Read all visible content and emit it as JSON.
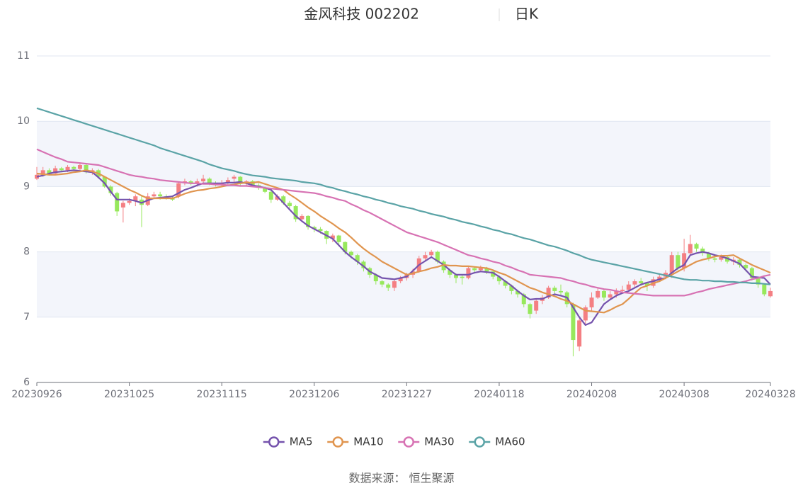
{
  "chart_data": {
    "type": "candlestick",
    "title": "金风科技 002202",
    "subtitle": "日K",
    "source": "数据来源： 恒生聚源",
    "up_color": "#f47f83",
    "down_color": "#97e85c",
    "ylim": [
      6,
      11
    ],
    "yticks": [
      6,
      7,
      8,
      9,
      10,
      11
    ],
    "grid": true,
    "legend": "bottom",
    "categories": [
      "20230926",
      null,
      null,
      null,
      null,
      null,
      null,
      null,
      null,
      null,
      null,
      null,
      null,
      null,
      null,
      "20231025",
      null,
      null,
      null,
      null,
      null,
      null,
      null,
      null,
      null,
      null,
      null,
      null,
      null,
      null,
      "20231115",
      null,
      null,
      null,
      null,
      null,
      null,
      null,
      null,
      null,
      null,
      null,
      null,
      null,
      null,
      "20231206",
      null,
      null,
      null,
      null,
      null,
      null,
      null,
      null,
      null,
      null,
      null,
      null,
      null,
      null,
      "20231227",
      null,
      null,
      null,
      null,
      null,
      null,
      null,
      null,
      null,
      null,
      null,
      null,
      null,
      null,
      "20240118",
      null,
      null,
      null,
      null,
      null,
      null,
      null,
      null,
      null,
      null,
      null,
      null,
      null,
      null,
      "20240208",
      null,
      null,
      null,
      null,
      null,
      null,
      null,
      null,
      null,
      null,
      null,
      null,
      null,
      null,
      "20240308",
      null,
      null,
      null,
      null,
      null,
      null,
      null,
      null,
      null,
      null,
      null,
      null,
      null,
      "20240328"
    ],
    "candles": [
      [
        9.12,
        9.18,
        9.1,
        9.3
      ],
      [
        9.18,
        9.25,
        9.15,
        9.3
      ],
      [
        9.25,
        9.2,
        9.17,
        9.28
      ],
      [
        9.2,
        9.28,
        9.18,
        9.32
      ],
      [
        9.28,
        9.25,
        9.22,
        9.3
      ],
      [
        9.25,
        9.3,
        9.22,
        9.33
      ],
      [
        9.3,
        9.27,
        9.24,
        9.32
      ],
      [
        9.27,
        9.33,
        9.25,
        9.37
      ],
      [
        9.33,
        9.22,
        9.2,
        9.34
      ],
      [
        9.22,
        9.25,
        9.18,
        9.28
      ],
      [
        9.25,
        9.15,
        9.12,
        9.27
      ],
      [
        9.15,
        9.0,
        8.98,
        9.16
      ],
      [
        9.0,
        8.9,
        8.86,
        9.02
      ],
      [
        8.9,
        8.62,
        8.55,
        8.92
      ],
      [
        8.68,
        8.75,
        8.45,
        8.78
      ],
      [
        8.75,
        8.78,
        8.72,
        8.82
      ],
      [
        8.78,
        8.85,
        8.7,
        8.88
      ],
      [
        8.8,
        8.72,
        8.38,
        8.86
      ],
      [
        8.72,
        8.85,
        8.7,
        8.9
      ],
      [
        8.85,
        8.88,
        8.82,
        8.92
      ],
      [
        8.88,
        8.85,
        8.8,
        8.92
      ],
      [
        8.85,
        8.83,
        8.8,
        8.88
      ],
      [
        8.83,
        8.8,
        8.78,
        8.86
      ],
      [
        8.85,
        9.05,
        8.82,
        9.08
      ],
      [
        9.05,
        9.08,
        9.02,
        9.12
      ],
      [
        9.08,
        9.05,
        9.02,
        9.1
      ],
      [
        9.05,
        9.08,
        9.0,
        9.12
      ],
      [
        9.08,
        9.12,
        9.05,
        9.18
      ],
      [
        9.12,
        9.05,
        9.02,
        9.14
      ],
      [
        9.05,
        9.03,
        9.0,
        9.08
      ],
      [
        9.03,
        9.05,
        9.0,
        9.1
      ],
      [
        9.05,
        9.1,
        9.02,
        9.14
      ],
      [
        9.12,
        9.15,
        9.05,
        9.18
      ],
      [
        9.15,
        9.05,
        9.02,
        9.16
      ],
      [
        9.05,
        9.08,
        9.02,
        9.1
      ],
      [
        9.08,
        9.02,
        9.0,
        9.1
      ],
      [
        9.02,
        8.98,
        8.95,
        9.05
      ],
      [
        8.98,
        8.92,
        8.9,
        9.0
      ],
      [
        8.92,
        8.8,
        8.75,
        8.94
      ],
      [
        8.8,
        8.85,
        8.78,
        8.88
      ],
      [
        8.85,
        8.75,
        8.72,
        8.87
      ],
      [
        8.75,
        8.7,
        8.66,
        8.78
      ],
      [
        8.7,
        8.5,
        8.46,
        8.72
      ],
      [
        8.5,
        8.55,
        8.48,
        8.58
      ],
      [
        8.55,
        8.38,
        8.34,
        8.56
      ],
      [
        8.38,
        8.35,
        8.3,
        8.4
      ],
      [
        8.35,
        8.32,
        8.28,
        8.38
      ],
      [
        8.32,
        8.2,
        8.12,
        8.33
      ],
      [
        8.2,
        8.25,
        8.15,
        8.28
      ],
      [
        8.25,
        8.15,
        8.1,
        8.26
      ],
      [
        8.15,
        8.0,
        7.96,
        8.16
      ],
      [
        8.0,
        7.95,
        7.9,
        8.02
      ],
      [
        7.95,
        7.85,
        7.8,
        7.97
      ],
      [
        7.85,
        7.75,
        7.7,
        7.87
      ],
      [
        7.75,
        7.65,
        7.6,
        7.77
      ],
      [
        7.65,
        7.55,
        7.5,
        7.67
      ],
      [
        7.55,
        7.5,
        7.46,
        7.57
      ],
      [
        7.5,
        7.45,
        7.4,
        7.52
      ],
      [
        7.45,
        7.55,
        7.4,
        7.58
      ],
      [
        7.55,
        7.6,
        7.52,
        7.63
      ],
      [
        7.6,
        7.65,
        7.56,
        7.68
      ],
      [
        7.65,
        7.7,
        7.6,
        7.74
      ],
      [
        7.7,
        7.9,
        7.68,
        7.94
      ],
      [
        7.9,
        7.95,
        7.85,
        8.0
      ],
      [
        7.95,
        8.0,
        7.92,
        8.03
      ],
      [
        8.0,
        7.85,
        7.82,
        8.02
      ],
      [
        7.85,
        7.72,
        7.68,
        7.87
      ],
      [
        7.72,
        7.65,
        7.6,
        7.74
      ],
      [
        7.65,
        7.6,
        7.52,
        7.67
      ],
      [
        7.62,
        7.6,
        7.5,
        7.64
      ],
      [
        7.6,
        7.75,
        7.58,
        7.78
      ],
      [
        7.75,
        7.72,
        7.68,
        7.77
      ],
      [
        7.72,
        7.75,
        7.7,
        7.79
      ],
      [
        7.75,
        7.7,
        7.66,
        7.77
      ],
      [
        7.7,
        7.62,
        7.58,
        7.72
      ],
      [
        7.62,
        7.55,
        7.5,
        7.64
      ],
      [
        7.55,
        7.48,
        7.44,
        7.57
      ],
      [
        7.48,
        7.4,
        7.35,
        7.5
      ],
      [
        7.4,
        7.35,
        7.3,
        7.42
      ],
      [
        7.35,
        7.2,
        7.15,
        7.37
      ],
      [
        7.2,
        7.05,
        6.98,
        7.22
      ],
      [
        7.1,
        7.25,
        7.05,
        7.28
      ],
      [
        7.25,
        7.3,
        7.2,
        7.34
      ],
      [
        7.3,
        7.45,
        7.28,
        7.48
      ],
      [
        7.45,
        7.4,
        7.35,
        7.48
      ],
      [
        7.4,
        7.38,
        7.32,
        7.5
      ],
      [
        7.38,
        7.2,
        7.15,
        7.4
      ],
      [
        7.2,
        6.65,
        6.4,
        7.22
      ],
      [
        6.55,
        6.95,
        6.48,
        6.98
      ],
      [
        6.95,
        7.15,
        6.9,
        7.18
      ],
      [
        7.15,
        7.3,
        7.1,
        7.38
      ],
      [
        7.3,
        7.4,
        7.28,
        7.45
      ],
      [
        7.4,
        7.3,
        7.25,
        7.42
      ],
      [
        7.3,
        7.35,
        7.28,
        7.4
      ],
      [
        7.35,
        7.4,
        7.3,
        7.44
      ],
      [
        7.4,
        7.42,
        7.36,
        7.48
      ],
      [
        7.42,
        7.5,
        7.4,
        7.55
      ],
      [
        7.5,
        7.55,
        7.46,
        7.58
      ],
      [
        7.55,
        7.52,
        7.48,
        7.6
      ],
      [
        7.52,
        7.48,
        7.4,
        7.54
      ],
      [
        7.48,
        7.58,
        7.45,
        7.62
      ],
      [
        7.58,
        7.62,
        7.55,
        7.66
      ],
      [
        7.62,
        7.68,
        7.58,
        7.72
      ],
      [
        7.68,
        7.95,
        7.6,
        8.0
      ],
      [
        7.95,
        7.75,
        7.72,
        8.0
      ],
      [
        7.75,
        7.98,
        7.7,
        8.2
      ],
      [
        7.98,
        8.12,
        7.95,
        8.26
      ],
      [
        8.12,
        8.05,
        8.0,
        8.14
      ],
      [
        8.05,
        7.98,
        7.94,
        8.08
      ],
      [
        7.98,
        7.9,
        7.86,
        8.0
      ],
      [
        7.9,
        7.88,
        7.84,
        7.94
      ],
      [
        7.88,
        7.92,
        7.85,
        7.96
      ],
      [
        7.92,
        7.85,
        7.82,
        7.94
      ],
      [
        7.85,
        7.88,
        7.8,
        7.92
      ],
      [
        7.88,
        7.8,
        7.76,
        7.9
      ],
      [
        7.8,
        7.75,
        7.7,
        7.82
      ],
      [
        7.75,
        7.6,
        7.56,
        7.77
      ],
      [
        7.6,
        7.5,
        7.45,
        7.62
      ],
      [
        7.5,
        7.35,
        7.32,
        7.52
      ],
      [
        7.32,
        7.4,
        7.3,
        7.45
      ]
    ],
    "series": [
      {
        "name": "MA5",
        "color": "#7553ad",
        "values": [
          9.15,
          9.17,
          9.2,
          9.22,
          9.23,
          9.24,
          9.25,
          9.24,
          9.23,
          9.22,
          9.14,
          9.05,
          8.92,
          8.8,
          8.8,
          8.8,
          8.78,
          8.75,
          8.79,
          8.82,
          8.83,
          8.84,
          8.85,
          8.9,
          8.95,
          8.98,
          9.02,
          9.05,
          9.05,
          9.05,
          9.05,
          9.06,
          9.06,
          9.07,
          9.05,
          9.02,
          9.0,
          8.98,
          8.95,
          8.85,
          8.75,
          8.65,
          8.55,
          8.47,
          8.4,
          8.35,
          8.3,
          8.25,
          8.2,
          8.1,
          8.0,
          7.92,
          7.85,
          7.78,
          7.7,
          7.65,
          7.6,
          7.59,
          7.58,
          7.6,
          7.62,
          7.71,
          7.8,
          7.86,
          7.92,
          7.86,
          7.8,
          7.72,
          7.65,
          7.65,
          7.65,
          7.68,
          7.7,
          7.69,
          7.68,
          7.62,
          7.55,
          7.48,
          7.4,
          7.33,
          7.27,
          7.28,
          7.28,
          7.32,
          7.35,
          7.33,
          7.3,
          7.15,
          7.0,
          6.88,
          6.92,
          7.06,
          7.2,
          7.27,
          7.33,
          7.37,
          7.4,
          7.45,
          7.5,
          7.53,
          7.55,
          7.58,
          7.6,
          7.68,
          7.75,
          7.8,
          7.95,
          7.98,
          8.0,
          7.98,
          7.95,
          7.93,
          7.9,
          7.86,
          7.82,
          7.72,
          7.62,
          7.61,
          7.6,
          7.5
        ]
      },
      {
        "name": "MA10",
        "color": "#e0954f",
        "values": [
          9.2,
          9.19,
          9.18,
          9.18,
          9.19,
          9.2,
          9.22,
          9.23,
          9.25,
          9.23,
          9.2,
          9.15,
          9.1,
          9.05,
          9.0,
          8.95,
          8.91,
          8.86,
          8.82,
          8.82,
          8.82,
          8.82,
          8.82,
          8.85,
          8.89,
          8.92,
          8.94,
          8.95,
          8.97,
          8.98,
          9.0,
          9.02,
          9.03,
          9.05,
          9.06,
          9.06,
          9.07,
          9.04,
          9.01,
          8.98,
          8.95,
          8.88,
          8.82,
          8.75,
          8.68,
          8.62,
          8.55,
          8.49,
          8.43,
          8.36,
          8.3,
          8.22,
          8.13,
          8.05,
          7.98,
          7.92,
          7.85,
          7.8,
          7.75,
          7.7,
          7.65,
          7.67,
          7.7,
          7.72,
          7.75,
          7.77,
          7.8,
          7.79,
          7.79,
          7.78,
          7.78,
          7.77,
          7.76,
          7.75,
          7.72,
          7.68,
          7.65,
          7.6,
          7.55,
          7.5,
          7.45,
          7.42,
          7.38,
          7.35,
          7.32,
          7.28,
          7.25,
          7.2,
          7.15,
          7.1,
          7.09,
          7.08,
          7.07,
          7.11,
          7.16,
          7.2,
          7.28,
          7.37,
          7.45,
          7.48,
          7.52,
          7.55,
          7.6,
          7.65,
          7.7,
          7.75,
          7.8,
          7.85,
          7.88,
          7.9,
          7.93,
          7.94,
          7.94,
          7.95,
          7.9,
          7.85,
          7.8,
          7.76,
          7.72,
          7.68
        ]
      },
      {
        "name": "MA30",
        "color": "#d772b3",
        "values": [
          9.57,
          9.53,
          9.49,
          9.45,
          9.42,
          9.38,
          9.37,
          9.36,
          9.35,
          9.34,
          9.33,
          9.3,
          9.27,
          9.24,
          9.21,
          9.18,
          9.16,
          9.15,
          9.13,
          9.12,
          9.1,
          9.09,
          9.08,
          9.07,
          9.06,
          9.05,
          9.05,
          9.04,
          9.04,
          9.03,
          9.03,
          9.02,
          9.02,
          9.01,
          9.01,
          9.0,
          8.99,
          8.98,
          8.97,
          8.96,
          8.95,
          8.94,
          8.93,
          8.92,
          8.91,
          8.9,
          8.88,
          8.85,
          8.83,
          8.8,
          8.78,
          8.73,
          8.69,
          8.64,
          8.6,
          8.55,
          8.5,
          8.45,
          8.4,
          8.35,
          8.3,
          8.27,
          8.24,
          8.21,
          8.18,
          8.15,
          8.11,
          8.07,
          8.03,
          7.99,
          7.95,
          7.93,
          7.9,
          7.88,
          7.85,
          7.83,
          7.79,
          7.76,
          7.72,
          7.69,
          7.65,
          7.64,
          7.63,
          7.62,
          7.61,
          7.6,
          7.57,
          7.55,
          7.52,
          7.5,
          7.47,
          7.45,
          7.43,
          7.42,
          7.4,
          7.38,
          7.37,
          7.36,
          7.35,
          7.34,
          7.33,
          7.33,
          7.33,
          7.33,
          7.33,
          7.33,
          7.35,
          7.38,
          7.4,
          7.43,
          7.45,
          7.47,
          7.49,
          7.51,
          7.53,
          7.55,
          7.58,
          7.6,
          7.63,
          7.65
        ]
      },
      {
        "name": "MA60",
        "color": "#5aa3a6",
        "values": [
          10.2,
          10.17,
          10.14,
          10.11,
          10.08,
          10.05,
          10.02,
          9.99,
          9.96,
          9.93,
          9.9,
          9.87,
          9.84,
          9.81,
          9.78,
          9.75,
          9.72,
          9.69,
          9.66,
          9.63,
          9.59,
          9.56,
          9.53,
          9.5,
          9.47,
          9.44,
          9.41,
          9.38,
          9.34,
          9.31,
          9.28,
          9.26,
          9.24,
          9.21,
          9.19,
          9.17,
          9.16,
          9.15,
          9.13,
          9.12,
          9.11,
          9.1,
          9.09,
          9.07,
          9.06,
          9.05,
          9.03,
          9.0,
          8.98,
          8.95,
          8.93,
          8.9,
          8.88,
          8.85,
          8.83,
          8.8,
          8.78,
          8.75,
          8.73,
          8.7,
          8.68,
          8.66,
          8.63,
          8.61,
          8.58,
          8.56,
          8.54,
          8.51,
          8.49,
          8.46,
          8.44,
          8.42,
          8.39,
          8.37,
          8.34,
          8.32,
          8.29,
          8.27,
          8.24,
          8.21,
          8.19,
          8.16,
          8.13,
          8.1,
          8.08,
          8.05,
          8.02,
          7.98,
          7.95,
          7.91,
          7.88,
          7.86,
          7.84,
          7.82,
          7.8,
          7.78,
          7.76,
          7.74,
          7.72,
          7.7,
          7.68,
          7.66,
          7.64,
          7.62,
          7.6,
          7.58,
          7.57,
          7.57,
          7.56,
          7.56,
          7.55,
          7.55,
          7.54,
          7.54,
          7.53,
          7.53,
          7.52,
          7.52,
          7.51,
          7.5
        ]
      }
    ]
  }
}
